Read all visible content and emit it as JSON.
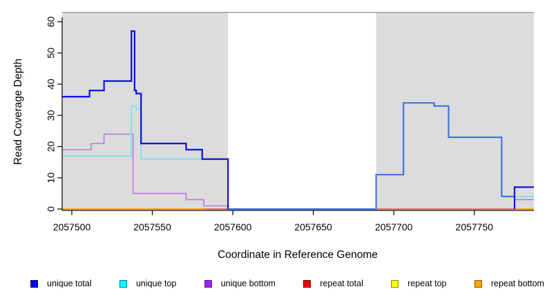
{
  "chart_data": {
    "type": "line",
    "title": "",
    "xlabel": "Coordinate in Reference Genome",
    "ylabel": "Read Coverage Depth",
    "xlim": [
      2057494,
      2057787
    ],
    "ylim": [
      0,
      63
    ],
    "xticks": [
      2057500,
      2057550,
      2057600,
      2057650,
      2057700,
      2057750
    ],
    "yticks": [
      0,
      10,
      20,
      30,
      40,
      50,
      60
    ],
    "grid": false,
    "legend_position": "bottom",
    "shade_color": "#dcdcdc",
    "top_border_color": "#8a8a8a",
    "shaded_regions": [
      {
        "name": "left-repeat-region",
        "from": 2057494,
        "to": 2057597
      },
      {
        "name": "right-repeat-region",
        "from": 2057689,
        "to": 2057787
      }
    ],
    "series": [
      {
        "key": "repeat_top",
        "name": "repeat top",
        "color": "#ffff00",
        "width": 1.5,
        "steps": [
          [
            2057494,
            0
          ]
        ],
        "visible_ranges": [
          [
            2057494,
            2057787
          ]
        ]
      },
      {
        "key": "repeat_total",
        "name": "repeat total",
        "color": "#d85573",
        "width": 1.5,
        "steps": [
          [
            2057494,
            0
          ]
        ],
        "visible_ranges": [
          [
            2057494,
            2057787
          ]
        ]
      },
      {
        "key": "repeat_bottom",
        "name": "repeat bottom",
        "color": "#ffa500",
        "width": 2,
        "steps": [
          [
            2057494,
            0
          ]
        ],
        "visible_ranges": [
          [
            2057494,
            2057582
          ],
          [
            2057775,
            2057787
          ]
        ]
      },
      {
        "key": "unique_bottom",
        "name": "unique bottom",
        "color": "#bb77e0",
        "width": 1.6,
        "steps": [
          [
            2057494,
            19
          ],
          [
            2057512,
            21
          ],
          [
            2057520,
            24
          ],
          [
            2057538,
            5
          ],
          [
            2057571,
            3
          ],
          [
            2057582,
            1
          ],
          [
            2057597,
            0
          ],
          [
            2057775,
            3
          ]
        ],
        "visible_ranges": [
          [
            2057494,
            2057597
          ],
          [
            2057775,
            2057787
          ]
        ]
      },
      {
        "key": "unique_top",
        "name": "unique top",
        "color": "#6fe3ef",
        "width": 1.6,
        "steps": [
          [
            2057494,
            17
          ],
          [
            2057537,
            33
          ],
          [
            2057540,
            32
          ],
          [
            2057543,
            16
          ],
          [
            2057597,
            0
          ],
          [
            2057775,
            4
          ]
        ],
        "visible_ranges": [
          [
            2057494,
            2057597
          ],
          [
            2057775,
            2057787
          ]
        ]
      },
      {
        "key": "total",
        "name": "total",
        "color": "#4472e0",
        "width": 2.2,
        "steps": [
          [
            2057494,
            36
          ],
          [
            2057511,
            38
          ],
          [
            2057520,
            41
          ],
          [
            2057537,
            57
          ],
          [
            2057539,
            38
          ],
          [
            2057540,
            37
          ],
          [
            2057543,
            21
          ],
          [
            2057571,
            19
          ],
          [
            2057581,
            16
          ],
          [
            2057597,
            0
          ],
          [
            2057689,
            11
          ],
          [
            2057706,
            34
          ],
          [
            2057725,
            33
          ],
          [
            2057734,
            23
          ],
          [
            2057767,
            4
          ],
          [
            2057775,
            7
          ]
        ],
        "visible_ranges": [
          [
            2057494,
            2057787
          ]
        ]
      },
      {
        "key": "unique_total",
        "name": "unique total",
        "color": "#1414dd",
        "width": 2.2,
        "steps": [
          [
            2057494,
            36
          ],
          [
            2057511,
            38
          ],
          [
            2057520,
            41
          ],
          [
            2057537,
            57
          ],
          [
            2057539,
            38
          ],
          [
            2057540,
            37
          ],
          [
            2057543,
            21
          ],
          [
            2057571,
            19
          ],
          [
            2057581,
            16
          ],
          [
            2057597,
            0
          ],
          [
            2057775,
            7
          ]
        ],
        "visible_ranges": [
          [
            2057494,
            2057597
          ],
          [
            2057775,
            2057787
          ]
        ]
      }
    ],
    "legend": [
      {
        "key": "unique_total",
        "label": "unique total",
        "fill": "#0000ee",
        "border": "#00008b"
      },
      {
        "key": "unique_top",
        "label": "unique top",
        "fill": "#00ffff",
        "border": "#007a8a"
      },
      {
        "key": "unique_bottom",
        "label": "unique bottom",
        "fill": "#a020f0",
        "border": "#5a1e8a"
      },
      {
        "key": "repeat_total",
        "label": "repeat total",
        "fill": "#ee0000",
        "border": "#7a0000"
      },
      {
        "key": "repeat_top",
        "label": "repeat top",
        "fill": "#ffff00",
        "border": "#8a8a00"
      },
      {
        "key": "repeat_bottom",
        "label": "repeat bottom",
        "fill": "#ffa500",
        "border": "#8a5a00"
      }
    ]
  }
}
